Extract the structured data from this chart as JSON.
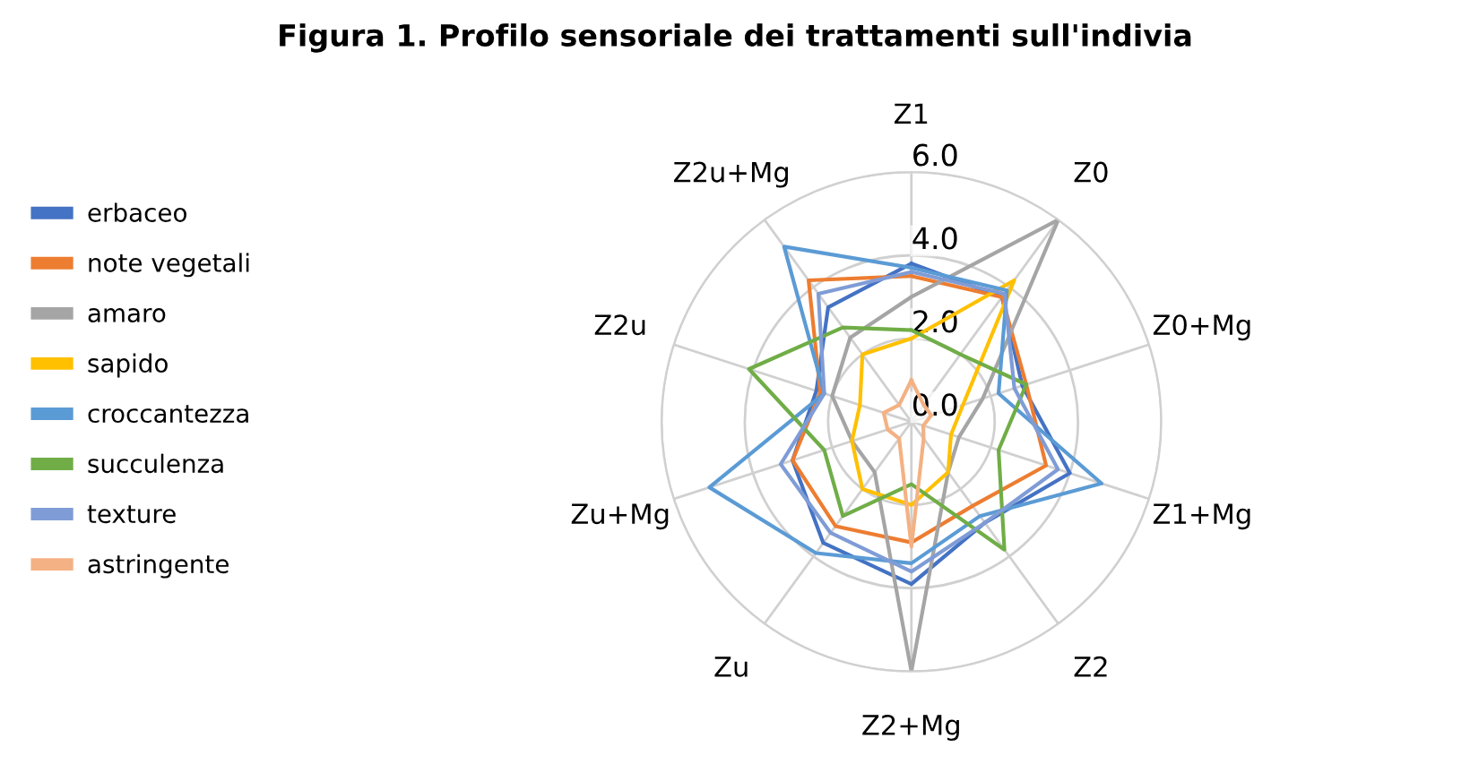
{
  "chart_data": {
    "type": "radar",
    "title": "Figura 1. Profilo sensoriale dei trattamenti sull'indivia",
    "categories": [
      "Z1",
      "Z0",
      "Z0+Mg",
      "Z1+Mg",
      "Z2",
      "Z2+Mg",
      "Zu",
      "Zu+Mg",
      "Z2u",
      "Z2u+Mg"
    ],
    "series": [
      {
        "name": "erbaceo",
        "color": "#4472c4",
        "values": [
          3.8,
          3.7,
          2.8,
          4.0,
          3.0,
          3.9,
          3.6,
          3.0,
          2.4,
          3.4
        ]
      },
      {
        "name": "note vegetali",
        "color": "#ed7d31",
        "values": [
          3.5,
          3.7,
          2.9,
          3.4,
          2.5,
          2.9,
          3.1,
          3.0,
          2.3,
          4.2
        ]
      },
      {
        "name": "amaro",
        "color": "#a5a5a5",
        "values": [
          3.0,
          6.0,
          1.8,
          1.2,
          1.5,
          6.0,
          1.5,
          1.5,
          2.0,
          2.5
        ]
      },
      {
        "name": "sapido",
        "color": "#ffc000",
        "values": [
          2.0,
          4.2,
          1.3,
          1.0,
          1.5,
          2.0,
          2.0,
          1.5,
          1.3,
          2.0
        ]
      },
      {
        "name": "croccantezza",
        "color": "#5b9bd5",
        "values": [
          3.7,
          3.9,
          2.2,
          4.8,
          2.8,
          3.4,
          3.9,
          5.1,
          2.2,
          5.2
        ]
      },
      {
        "name": "succulenza",
        "color": "#70ad47",
        "values": [
          2.2,
          2.0,
          2.9,
          2.2,
          3.8,
          1.5,
          2.8,
          2.2,
          4.1,
          2.8
        ]
      },
      {
        "name": "texture",
        "color": "#7f9cd6",
        "values": [
          3.6,
          3.8,
          2.6,
          3.7,
          3.0,
          3.6,
          3.3,
          3.3,
          2.2,
          3.8
        ]
      },
      {
        "name": "astringente",
        "color": "#f4b183",
        "values": [
          1.0,
          0.5,
          0.5,
          0.3,
          0.5,
          3.0,
          0.5,
          0.6,
          0.7,
          0.5
        ]
      }
    ],
    "ylim": [
      0,
      6
    ],
    "yticks": [
      {
        "value": 0,
        "label": "0.0"
      },
      {
        "value": 2,
        "label": "2.0"
      },
      {
        "value": 4,
        "label": "4.0"
      },
      {
        "value": 6,
        "label": "6.0"
      }
    ],
    "grid": true,
    "legend": "left",
    "marker": "none",
    "line_style": "solid"
  }
}
